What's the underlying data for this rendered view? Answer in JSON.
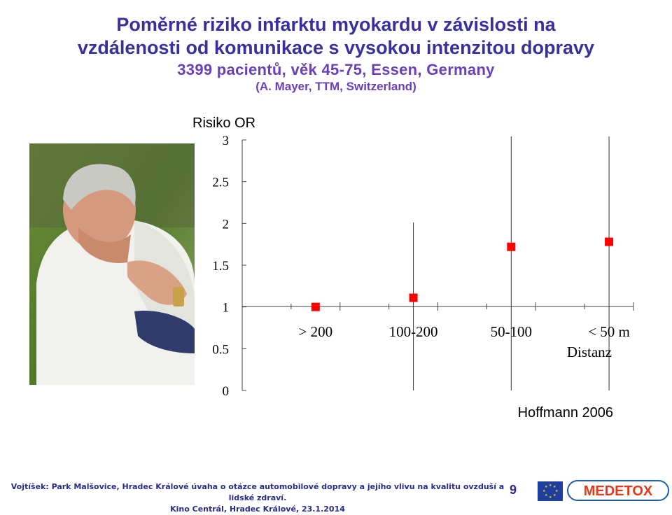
{
  "title": {
    "line1": "Poměrné riziko infarktu myokardu v závislosti na",
    "line2": "vzdálenosti od komunikace s vysokou intenzitou dopravy",
    "line3": "3399 pacientů, věk 45-75, Essen, Germany",
    "line4": "(A. Mayer, TTM, Switzerland)"
  },
  "chart_data": {
    "type": "scatter",
    "ylabel": "Risiko OR",
    "xlabel": "Distanz",
    "yticks": [
      "3",
      "2.5",
      "2",
      "1.5",
      "1",
      "0.5",
      "0"
    ],
    "ylim": [
      0,
      3
    ],
    "categories": [
      "> 200",
      "100-200",
      "50-100",
      "< 50 m"
    ],
    "values": [
      1.0,
      1.11,
      1.72,
      1.78
    ],
    "grid": false,
    "marker_color": "#ff0000",
    "annotation": "Hoffmann 2006"
  },
  "footer": {
    "line1": "Vojtíšek: Park Malšovice, Hradec Králové  úvaha o otázce automobilové dopravy a jejího vlivu na kvalitu ovzduší a lidské zdraví.",
    "line2": "Kino Centrál, Hradec Králové, 23.1.2014",
    "page": "9"
  },
  "logos": {
    "right": "MEDETOX",
    "left_icon": "eu-flag-icon"
  },
  "photo": {
    "icon": "man-chest-pain-photo"
  },
  "colors": {
    "title": "#3b2f9e",
    "subtitle": "#6a3fb8",
    "footer": "#2b2a8a",
    "marker": "#ff0000"
  }
}
